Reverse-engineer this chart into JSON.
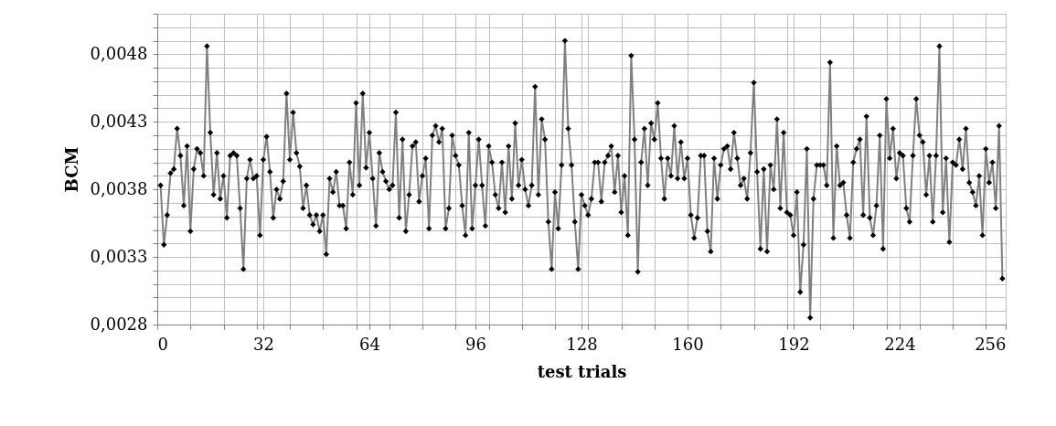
{
  "chart_data": {
    "type": "line",
    "xlabel": "test trials",
    "ylabel": "BCM",
    "x": [
      1,
      2,
      3,
      4,
      5,
      6,
      7,
      8,
      9,
      10,
      11,
      12,
      13,
      14,
      15,
      16,
      17,
      18,
      19,
      20,
      21,
      22,
      23,
      24,
      25,
      26,
      27,
      28,
      29,
      30,
      31,
      32,
      33,
      34,
      35,
      36,
      37,
      38,
      39,
      40,
      41,
      42,
      43,
      44,
      45,
      46,
      47,
      48,
      49,
      50,
      51,
      52,
      53,
      54,
      55,
      56,
      57,
      58,
      59,
      60,
      61,
      62,
      63,
      64,
      65,
      66,
      67,
      68,
      69,
      70,
      71,
      72,
      73,
      74,
      75,
      76,
      77,
      78,
      79,
      80,
      81,
      82,
      83,
      84,
      85,
      86,
      87,
      88,
      89,
      90,
      91,
      92,
      93,
      94,
      95,
      96,
      97,
      98,
      99,
      100,
      101,
      102,
      103,
      104,
      105,
      106,
      107,
      108,
      109,
      110,
      111,
      112,
      113,
      114,
      115,
      116,
      117,
      118,
      119,
      120,
      121,
      122,
      123,
      124,
      125,
      126,
      127,
      128,
      129,
      130,
      131,
      132,
      133,
      134,
      135,
      136,
      137,
      138,
      139,
      140,
      141,
      142,
      143,
      144,
      145,
      146,
      147,
      148,
      149,
      150,
      151,
      152,
      153,
      154,
      155,
      156,
      157,
      158,
      159,
      160,
      161,
      162,
      163,
      164,
      165,
      166,
      167,
      168,
      169,
      170,
      171,
      172,
      173,
      174,
      175,
      176,
      177,
      178,
      179,
      180,
      181,
      182,
      183,
      184,
      185,
      186,
      187,
      188,
      189,
      190,
      191,
      192,
      193,
      194,
      195,
      196,
      197,
      198,
      199,
      200,
      201,
      202,
      203,
      204,
      205,
      206,
      207,
      208,
      209,
      210,
      211,
      212,
      213,
      214,
      215,
      216,
      217,
      218,
      219,
      220,
      221,
      222,
      223,
      224,
      225,
      226,
      227,
      228,
      229,
      230,
      231,
      232,
      233,
      234,
      235,
      236,
      237,
      238,
      239,
      240,
      241,
      242,
      243,
      244,
      245,
      246,
      247,
      248,
      249,
      250,
      251,
      252,
      253,
      254,
      255
    ],
    "series": [
      {
        "color": "#808080",
        "values": [
          0.00383,
          0.00339,
          0.00361,
          0.00392,
          0.00395,
          0.00425,
          0.00405,
          0.00368,
          0.00412,
          0.00349,
          0.00395,
          0.0041,
          0.00407,
          0.0039,
          0.00486,
          0.00422,
          0.00376,
          0.00407,
          0.00373,
          0.0039,
          0.00359,
          0.00405,
          0.00407,
          0.00405,
          0.00366,
          0.00321,
          0.00388,
          0.00402,
          0.00388,
          0.0039,
          0.00346,
          0.00402,
          0.00419,
          0.00393,
          0.00359,
          0.0038,
          0.00373,
          0.00386,
          0.00451,
          0.00402,
          0.00437,
          0.00407,
          0.00397,
          0.00366,
          0.00383,
          0.00361,
          0.00354,
          0.00361,
          0.00349,
          0.00361,
          0.00332,
          0.00388,
          0.00378,
          0.00393,
          0.00368,
          0.00368,
          0.00351,
          0.004,
          0.00376,
          0.00444,
          0.00383,
          0.00451,
          0.00396,
          0.00422,
          0.00388,
          0.00353,
          0.00407,
          0.00393,
          0.00386,
          0.0038,
          0.00383,
          0.00437,
          0.00359,
          0.00417,
          0.00349,
          0.00376,
          0.00412,
          0.00415,
          0.00371,
          0.0039,
          0.00403,
          0.00351,
          0.0042,
          0.00427,
          0.00415,
          0.00425,
          0.00351,
          0.00366,
          0.0042,
          0.00405,
          0.00398,
          0.00368,
          0.00346,
          0.00422,
          0.00351,
          0.00383,
          0.00417,
          0.00383,
          0.00353,
          0.00412,
          0.004,
          0.00376,
          0.00366,
          0.004,
          0.00363,
          0.00412,
          0.00373,
          0.00429,
          0.00383,
          0.00402,
          0.0038,
          0.00368,
          0.00383,
          0.00456,
          0.00376,
          0.00432,
          0.00417,
          0.00356,
          0.00321,
          0.00378,
          0.00351,
          0.00398,
          0.0049,
          0.00425,
          0.00398,
          0.00356,
          0.00321,
          0.00376,
          0.00368,
          0.00361,
          0.00373,
          0.004,
          0.004,
          0.00371,
          0.004,
          0.00405,
          0.00412,
          0.00378,
          0.00405,
          0.00363,
          0.0039,
          0.00346,
          0.00479,
          0.00417,
          0.00319,
          0.004,
          0.00425,
          0.00383,
          0.00429,
          0.00417,
          0.00444,
          0.00403,
          0.00373,
          0.00403,
          0.0039,
          0.00427,
          0.00388,
          0.00415,
          0.00388,
          0.00403,
          0.00361,
          0.00344,
          0.00359,
          0.00405,
          0.00405,
          0.00349,
          0.00334,
          0.00403,
          0.00373,
          0.00398,
          0.0041,
          0.00412,
          0.00395,
          0.00422,
          0.00403,
          0.00383,
          0.00388,
          0.00373,
          0.00407,
          0.00459,
          0.00393,
          0.00336,
          0.00395,
          0.00334,
          0.00398,
          0.0038,
          0.00432,
          0.00366,
          0.00422,
          0.00363,
          0.00361,
          0.00346,
          0.00378,
          0.00304,
          0.00339,
          0.0041,
          0.00285,
          0.00373,
          0.00398,
          0.00398,
          0.00398,
          0.00383,
          0.00474,
          0.00344,
          0.00412,
          0.00383,
          0.00385,
          0.00361,
          0.00344,
          0.004,
          0.0041,
          0.00417,
          0.00361,
          0.00434,
          0.00359,
          0.00346,
          0.00368,
          0.0042,
          0.00336,
          0.00447,
          0.00403,
          0.00425,
          0.00388,
          0.00407,
          0.00405,
          0.00366,
          0.00356,
          0.00405,
          0.00447,
          0.0042,
          0.00415,
          0.00376,
          0.00405,
          0.00356,
          0.00405,
          0.00486,
          0.00363,
          0.00403,
          0.00341,
          0.004,
          0.00398,
          0.00417,
          0.00395,
          0.00425,
          0.00385,
          0.00378,
          0.00368,
          0.0039,
          0.00346,
          0.0041,
          0.00385,
          0.004,
          0.00366,
          0.00427,
          0.00314
        ]
      }
    ],
    "xlim": [
      0,
      256
    ],
    "xticks": [
      0,
      {
        "value": 10,
        "label": null
      },
      {
        "value": 20,
        "label": null
      },
      {
        "value": 30,
        "label": null
      },
      32,
      {
        "value": 40,
        "label": null
      },
      {
        "value": 50,
        "label": null
      },
      {
        "value": 60,
        "label": null
      },
      64,
      {
        "value": 70,
        "label": null
      },
      {
        "value": 80,
        "label": null
      },
      {
        "value": 90,
        "label": null
      },
      96,
      {
        "value": 100,
        "label": null
      },
      {
        "value": 110,
        "label": null
      },
      {
        "value": 120,
        "label": null
      },
      128,
      {
        "value": 130,
        "label": null
      },
      {
        "value": 140,
        "label": null
      },
      {
        "value": 150,
        "label": null
      },
      160,
      {
        "value": 170,
        "label": null
      },
      {
        "value": 180,
        "label": null
      },
      {
        "value": 190,
        "label": null
      },
      192,
      {
        "value": 200,
        "label": null
      },
      {
        "value": 210,
        "label": null
      },
      {
        "value": 220,
        "label": null
      },
      224,
      {
        "value": 230,
        "label": null
      },
      {
        "value": 240,
        "label": null
      },
      {
        "value": 250,
        "label": null
      },
      256
    ],
    "ylim": [
      0.0028,
      0.0051
    ],
    "yticks": [
      {
        "value": 0.0028,
        "label": "0,0028"
      },
      {
        "value": 0.0029,
        "label": null
      },
      {
        "value": 0.003,
        "label": null
      },
      {
        "value": 0.0031,
        "label": null
      },
      {
        "value": 0.0032,
        "label": null
      },
      {
        "value": 0.0033,
        "label": "0,0033"
      },
      {
        "value": 0.0034,
        "label": null
      },
      {
        "value": 0.0035,
        "label": null
      },
      {
        "value": 0.0036,
        "label": null
      },
      {
        "value": 0.0037,
        "label": null
      },
      {
        "value": 0.0038,
        "label": "0,0038"
      },
      {
        "value": 0.0039,
        "label": null
      },
      {
        "value": 0.004,
        "label": null
      },
      {
        "value": 0.0041,
        "label": null
      },
      {
        "value": 0.0042,
        "label": null
      },
      {
        "value": 0.0043,
        "label": "0,0043"
      },
      {
        "value": 0.0044,
        "label": null
      },
      {
        "value": 0.0045,
        "label": null
      },
      {
        "value": 0.0046,
        "label": null
      },
      {
        "value": 0.0047,
        "label": null
      },
      {
        "value": 0.0048,
        "label": "0,0048"
      },
      {
        "value": 0.0049,
        "label": null
      },
      {
        "value": 0.005,
        "label": null
      },
      {
        "value": 0.0051,
        "label": null
      }
    ],
    "grid": true,
    "marker": "diamond",
    "line_style": "solid"
  }
}
